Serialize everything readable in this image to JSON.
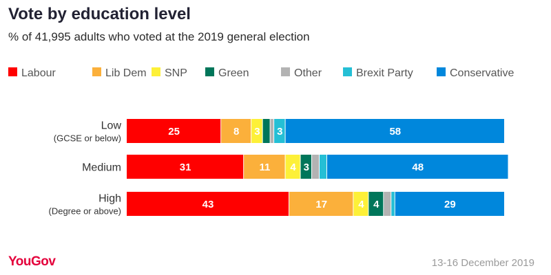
{
  "title": "Vote by education level",
  "subtitle": "% of 41,995 adults who voted at the 2019 general election",
  "footer": {
    "brand": "YouGov",
    "date": "13-16 December 2019"
  },
  "chart_data": {
    "type": "bar",
    "orientation": "horizontal",
    "stacked": true,
    "legend_position": "top",
    "xlim": [
      0,
      100
    ],
    "categories": [
      {
        "label": "Low",
        "sublabel": "(GCSE or below)"
      },
      {
        "label": "Medium",
        "sublabel": ""
      },
      {
        "label": "High",
        "sublabel": "(Degree or above)"
      }
    ],
    "series": [
      {
        "name": "Labour",
        "color": "#ff0000",
        "values": [
          25,
          31,
          43
        ]
      },
      {
        "name": "Lib Dem",
        "color": "#fbb03b",
        "values": [
          8,
          11,
          17
        ]
      },
      {
        "name": "SNP",
        "color": "#fdf038",
        "values": [
          3,
          4,
          4
        ]
      },
      {
        "name": "Green",
        "color": "#00765a",
        "values": [
          2,
          3,
          4
        ]
      },
      {
        "name": "Other",
        "color": "#b3b3b3",
        "values": [
          1,
          2,
          2
        ]
      },
      {
        "name": "Brexit Party",
        "color": "#25bfd5",
        "values": [
          3,
          2,
          1
        ]
      },
      {
        "name": "Conservative",
        "color": "#0087dc",
        "values": [
          58,
          48,
          29
        ]
      }
    ],
    "data_labels": [
      [
        "25",
        "8",
        "3",
        "",
        "",
        "3",
        "58"
      ],
      [
        "31",
        "11",
        "4",
        "3",
        "",
        "",
        "48"
      ],
      [
        "43",
        "17",
        "4",
        "4",
        "",
        "",
        "29"
      ]
    ]
  }
}
